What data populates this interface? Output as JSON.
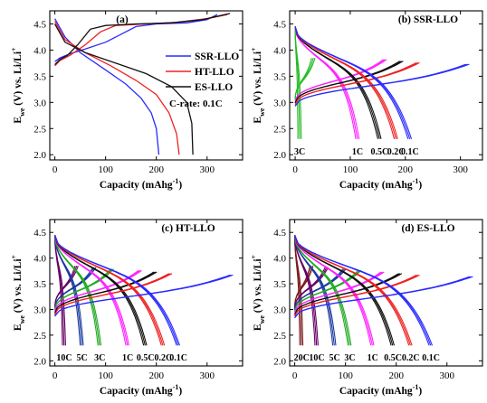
{
  "chart_data": [
    {
      "id": "a",
      "type": "line",
      "title": "(a)",
      "xlabel": "Capacity (mAhg",
      "xlabel_sup": "-1",
      "xlabel_close": ")",
      "ylabel_main": "E",
      "ylabel_sub": "we",
      "ylabel_rest": " (V) vs. Li/Li",
      "ylabel_sup": "+",
      "xlim": [
        -10,
        370
      ],
      "ylim": [
        1.9,
        4.75
      ],
      "xticks": [
        0,
        100,
        200,
        300
      ],
      "yticks": [
        2.0,
        2.5,
        3.0,
        3.5,
        4.0,
        4.5
      ],
      "legend_position": "right",
      "annotation": "C-rate: 0.1C",
      "series": [
        {
          "name": "SSR-LLO",
          "color": "#2a2aff",
          "charge": [
            [
              0,
              3.78
            ],
            [
              10,
              3.85
            ],
            [
              30,
              3.93
            ],
            [
              60,
              4.02
            ],
            [
              100,
              4.15
            ],
            [
              130,
              4.3
            ],
            [
              160,
              4.45
            ],
            [
              200,
              4.5
            ],
            [
              260,
              4.52
            ],
            [
              300,
              4.58
            ],
            [
              320,
              4.68
            ]
          ],
          "discharge": [
            [
              0,
              4.6
            ],
            [
              20,
              4.25
            ],
            [
              50,
              3.95
            ],
            [
              100,
              3.62
            ],
            [
              140,
              3.35
            ],
            [
              170,
              3.08
            ],
            [
              190,
              2.8
            ],
            [
              200,
              2.5
            ],
            [
              205,
              2.0
            ]
          ]
        },
        {
          "name": "HT-LLO",
          "color": "#ee2222",
          "charge": [
            [
              0,
              3.7
            ],
            [
              10,
              3.8
            ],
            [
              30,
              3.9
            ],
            [
              60,
              4.1
            ],
            [
              90,
              4.35
            ],
            [
              120,
              4.47
            ],
            [
              180,
              4.5
            ],
            [
              240,
              4.53
            ],
            [
              300,
              4.6
            ],
            [
              340,
              4.68
            ]
          ],
          "discharge": [
            [
              0,
              4.55
            ],
            [
              20,
              4.2
            ],
            [
              60,
              3.95
            ],
            [
              110,
              3.7
            ],
            [
              160,
              3.42
            ],
            [
              200,
              3.15
            ],
            [
              225,
              2.8
            ],
            [
              240,
              2.4
            ],
            [
              245,
              2.0
            ]
          ]
        },
        {
          "name": "ES-LLO",
          "color": "#111111",
          "charge": [
            [
              0,
              3.72
            ],
            [
              10,
              3.82
            ],
            [
              25,
              3.9
            ],
            [
              45,
              4.1
            ],
            [
              70,
              4.4
            ],
            [
              100,
              4.47
            ],
            [
              160,
              4.5
            ],
            [
              230,
              4.52
            ],
            [
              290,
              4.58
            ],
            [
              345,
              4.7
            ]
          ],
          "discharge": [
            [
              0,
              4.5
            ],
            [
              20,
              4.15
            ],
            [
              60,
              3.95
            ],
            [
              120,
              3.75
            ],
            [
              180,
              3.55
            ],
            [
              230,
              3.3
            ],
            [
              260,
              3.0
            ],
            [
              270,
              2.6
            ],
            [
              272,
              2.0
            ]
          ]
        }
      ]
    },
    {
      "id": "b",
      "type": "line",
      "title": "(b) SSR-LLO",
      "xlabel": "Capacity (mAhg",
      "xlabel_sup": "-1",
      "xlabel_close": ")",
      "ylabel_main": "E",
      "ylabel_sub": "we",
      "ylabel_rest": " (V) vs. Li/Li",
      "ylabel_sup": "+",
      "xlim": [
        -10,
        340
      ],
      "ylim": [
        1.9,
        4.75
      ],
      "xticks": [
        0,
        100,
        200,
        300
      ],
      "yticks": [
        2.0,
        2.5,
        3.0,
        3.5,
        4.0,
        4.5
      ],
      "series": [
        {
          "name": "3C",
          "color": "#22bb22",
          "cap": 5,
          "charge_cap": 30
        },
        {
          "name": "1C",
          "color": "#ff22ff",
          "cap": 110,
          "charge_cap": 160
        },
        {
          "name": "0.5C",
          "color": "#111111",
          "cap": 150,
          "charge_cap": 190
        },
        {
          "name": "0.2C",
          "color": "#ee2222",
          "cap": 180,
          "charge_cap": 220
        },
        {
          "name": "0.1C",
          "color": "#2a2aff",
          "cap": 205,
          "charge_cap": 310
        }
      ],
      "curve_labels": [
        "3C",
        "1C",
        "0.5C",
        "0.2C",
        "0.1C"
      ]
    },
    {
      "id": "c",
      "type": "line",
      "title": "(c) HT-LLO",
      "xlabel": "Capacity (mAhg",
      "xlabel_sup": "-1",
      "xlabel_close": ")",
      "ylabel_main": "E",
      "ylabel_sub": "we",
      "ylabel_rest": " (V) vs. Li/Li",
      "ylabel_sup": "+",
      "xlim": [
        -10,
        370
      ],
      "ylim": [
        1.9,
        4.75
      ],
      "xticks": [
        0,
        100,
        200,
        300
      ],
      "yticks": [
        2.0,
        2.5,
        3.0,
        3.5,
        4.0,
        4.5
      ],
      "series": [
        {
          "name": "10C",
          "color": "#660066",
          "cap": 15,
          "charge_cap": 40
        },
        {
          "name": "5C",
          "color": "#1a3aa0",
          "cap": 50,
          "charge_cap": 75
        },
        {
          "name": "3C",
          "color": "#22aa22",
          "cap": 85,
          "charge_cap": 110
        },
        {
          "name": "1C",
          "color": "#ff22ff",
          "cap": 140,
          "charge_cap": 165
        },
        {
          "name": "0.5C",
          "color": "#111111",
          "cap": 175,
          "charge_cap": 195
        },
        {
          "name": "0.2C",
          "color": "#ee2222",
          "cap": 210,
          "charge_cap": 225
        },
        {
          "name": "0.1C",
          "color": "#2a2aff",
          "cap": 240,
          "charge_cap": 345
        }
      ],
      "curve_labels": [
        "10C",
        "5C",
        "3C",
        "1C",
        "0.5C",
        "0.2C",
        "0.1C"
      ]
    },
    {
      "id": "d",
      "type": "line",
      "title": "(d) ES-LLO",
      "xlabel": "Capacity (mAhg",
      "xlabel_sup": "-1",
      "xlabel_close": ")",
      "ylabel_main": "E",
      "ylabel_sub": "we",
      "ylabel_rest": " (V) vs. Li/Li",
      "ylabel_sup": "+",
      "xlim": [
        -10,
        370
      ],
      "ylim": [
        1.9,
        4.75
      ],
      "xticks": [
        0,
        100,
        200,
        300
      ],
      "yticks": [
        2.0,
        2.5,
        3.0,
        3.5,
        4.0,
        4.5
      ],
      "series": [
        {
          "name": "20C",
          "color": "#7a1a1a",
          "cap": 10,
          "charge_cap": 30
        },
        {
          "name": "10C",
          "color": "#660066",
          "cap": 40,
          "charge_cap": 60
        },
        {
          "name": "5C",
          "color": "#1a3aa0",
          "cap": 75,
          "charge_cap": 95
        },
        {
          "name": "3C",
          "color": "#22aa22",
          "cap": 105,
          "charge_cap": 125
        },
        {
          "name": "1C",
          "color": "#ff22ff",
          "cap": 150,
          "charge_cap": 170
        },
        {
          "name": "0.5C",
          "color": "#111111",
          "cap": 190,
          "charge_cap": 205
        },
        {
          "name": "0.2C",
          "color": "#ee2222",
          "cap": 225,
          "charge_cap": 240
        },
        {
          "name": "0.1C",
          "color": "#2a2aff",
          "cap": 265,
          "charge_cap": 345
        }
      ],
      "curve_labels": [
        "20C",
        "10C",
        "5C",
        "3C",
        "1C",
        "0.5C",
        "0.2C",
        "0.1C"
      ]
    }
  ]
}
